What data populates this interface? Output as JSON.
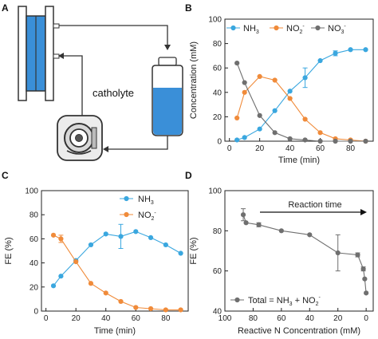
{
  "panels": {
    "A": "A",
    "B": "B",
    "C": "C",
    "D": "D"
  },
  "schematic": {
    "catholyte_label": "catholyte",
    "colors": {
      "cell_blue": "#3a8fd8",
      "line": "#333333"
    }
  },
  "colors": {
    "nh3": "#3aa7df",
    "no2": "#f08b3a",
    "no3": "#6f6f6f"
  },
  "chart_data": [
    {
      "id": "B",
      "type": "line",
      "xlabel": "Time (min)",
      "ylabel": "Concentration (mM)",
      "xlim": [
        -3,
        95
      ],
      "ylim": [
        0,
        100
      ],
      "xticks": [
        0,
        20,
        40,
        60,
        80
      ],
      "yticks": [
        0,
        20,
        40,
        60,
        80,
        100
      ],
      "legend": "top",
      "series": [
        {
          "name": "NH3",
          "legend_base": "NH",
          "legend_sub": "3",
          "legend_sup": "",
          "color": "#3aa7df",
          "x": [
            5,
            10,
            20,
            30,
            40,
            50,
            60,
            70,
            80,
            90
          ],
          "y": [
            1,
            3,
            10,
            25,
            41,
            52,
            66,
            72,
            75,
            75
          ],
          "err": [
            0,
            0,
            0,
            0,
            0,
            8,
            0,
            2,
            0,
            0
          ]
        },
        {
          "name": "NO2-",
          "legend_base": "NO",
          "legend_sub": "2",
          "legend_sup": "-",
          "color": "#f08b3a",
          "x": [
            5,
            10,
            20,
            30,
            40,
            50,
            60,
            70,
            80,
            90
          ],
          "y": [
            19,
            40,
            53,
            50,
            35,
            18,
            7,
            2,
            1,
            0
          ],
          "err": [
            0,
            0,
            0,
            0,
            0,
            0,
            0,
            0,
            0,
            0
          ]
        },
        {
          "name": "NO3-",
          "legend_base": "NO",
          "legend_sub": "3",
          "legend_sup": "-",
          "color": "#6f6f6f",
          "x": [
            5,
            10,
            20,
            30,
            40,
            50,
            60,
            70,
            80,
            90
          ],
          "y": [
            64,
            48,
            21,
            7,
            2,
            1,
            0,
            0,
            0,
            0
          ],
          "err": [
            0,
            0,
            0,
            0,
            0,
            0,
            0,
            0,
            0,
            0
          ]
        }
      ]
    },
    {
      "id": "C",
      "type": "line",
      "xlabel": "Time (min)",
      "ylabel": "FE (%)",
      "xlim": [
        -3,
        95
      ],
      "ylim": [
        0,
        100
      ],
      "xticks": [
        0,
        20,
        40,
        60,
        80
      ],
      "yticks": [
        0,
        20,
        40,
        60,
        80,
        100
      ],
      "legend": "top-right",
      "series": [
        {
          "name": "NH3",
          "legend_base": "NH",
          "legend_sub": "3",
          "legend_sup": "",
          "color": "#3aa7df",
          "x": [
            5,
            10,
            20,
            30,
            40,
            50,
            60,
            70,
            80,
            90
          ],
          "y": [
            21,
            29,
            42,
            55,
            64,
            62,
            66,
            61,
            55,
            48
          ],
          "err": [
            0,
            0,
            0,
            0,
            0,
            10,
            0,
            0,
            0,
            0
          ]
        },
        {
          "name": "NO2-",
          "legend_base": "NO",
          "legend_sub": "2",
          "legend_sup": "-",
          "color": "#f08b3a",
          "x": [
            5,
            10,
            20,
            30,
            40,
            50,
            60,
            70,
            80,
            90
          ],
          "y": [
            63,
            60,
            41,
            23,
            15,
            8,
            3,
            2,
            1,
            1
          ],
          "err": [
            0,
            3,
            0,
            0,
            0,
            0,
            0,
            0,
            0,
            0
          ]
        }
      ]
    },
    {
      "id": "D",
      "type": "line",
      "xlabel": "Reactive N Concentration (mM)",
      "ylabel": "FE (%)",
      "xlim": [
        100,
        -5
      ],
      "ylim": [
        40,
        100
      ],
      "xticks": [
        100,
        80,
        60,
        40,
        20,
        0
      ],
      "yticks": [
        40,
        60,
        80,
        100
      ],
      "legend": "bottom-left",
      "annotation": "Reaction time",
      "series": [
        {
          "name": "Total = NH3 + NO2-",
          "color": "#6f6f6f",
          "legend_parts": [
            "Total = NH",
            "3",
            " + NO",
            "2",
            "-"
          ],
          "x": [
            87,
            85,
            76,
            60,
            40,
            20,
            6,
            2,
            1,
            0
          ],
          "y": [
            88,
            84,
            83,
            80,
            78,
            69,
            68,
            61,
            56,
            49
          ],
          "err": [
            3,
            0,
            1,
            0,
            0,
            9,
            1,
            1,
            0,
            0
          ]
        }
      ]
    }
  ]
}
